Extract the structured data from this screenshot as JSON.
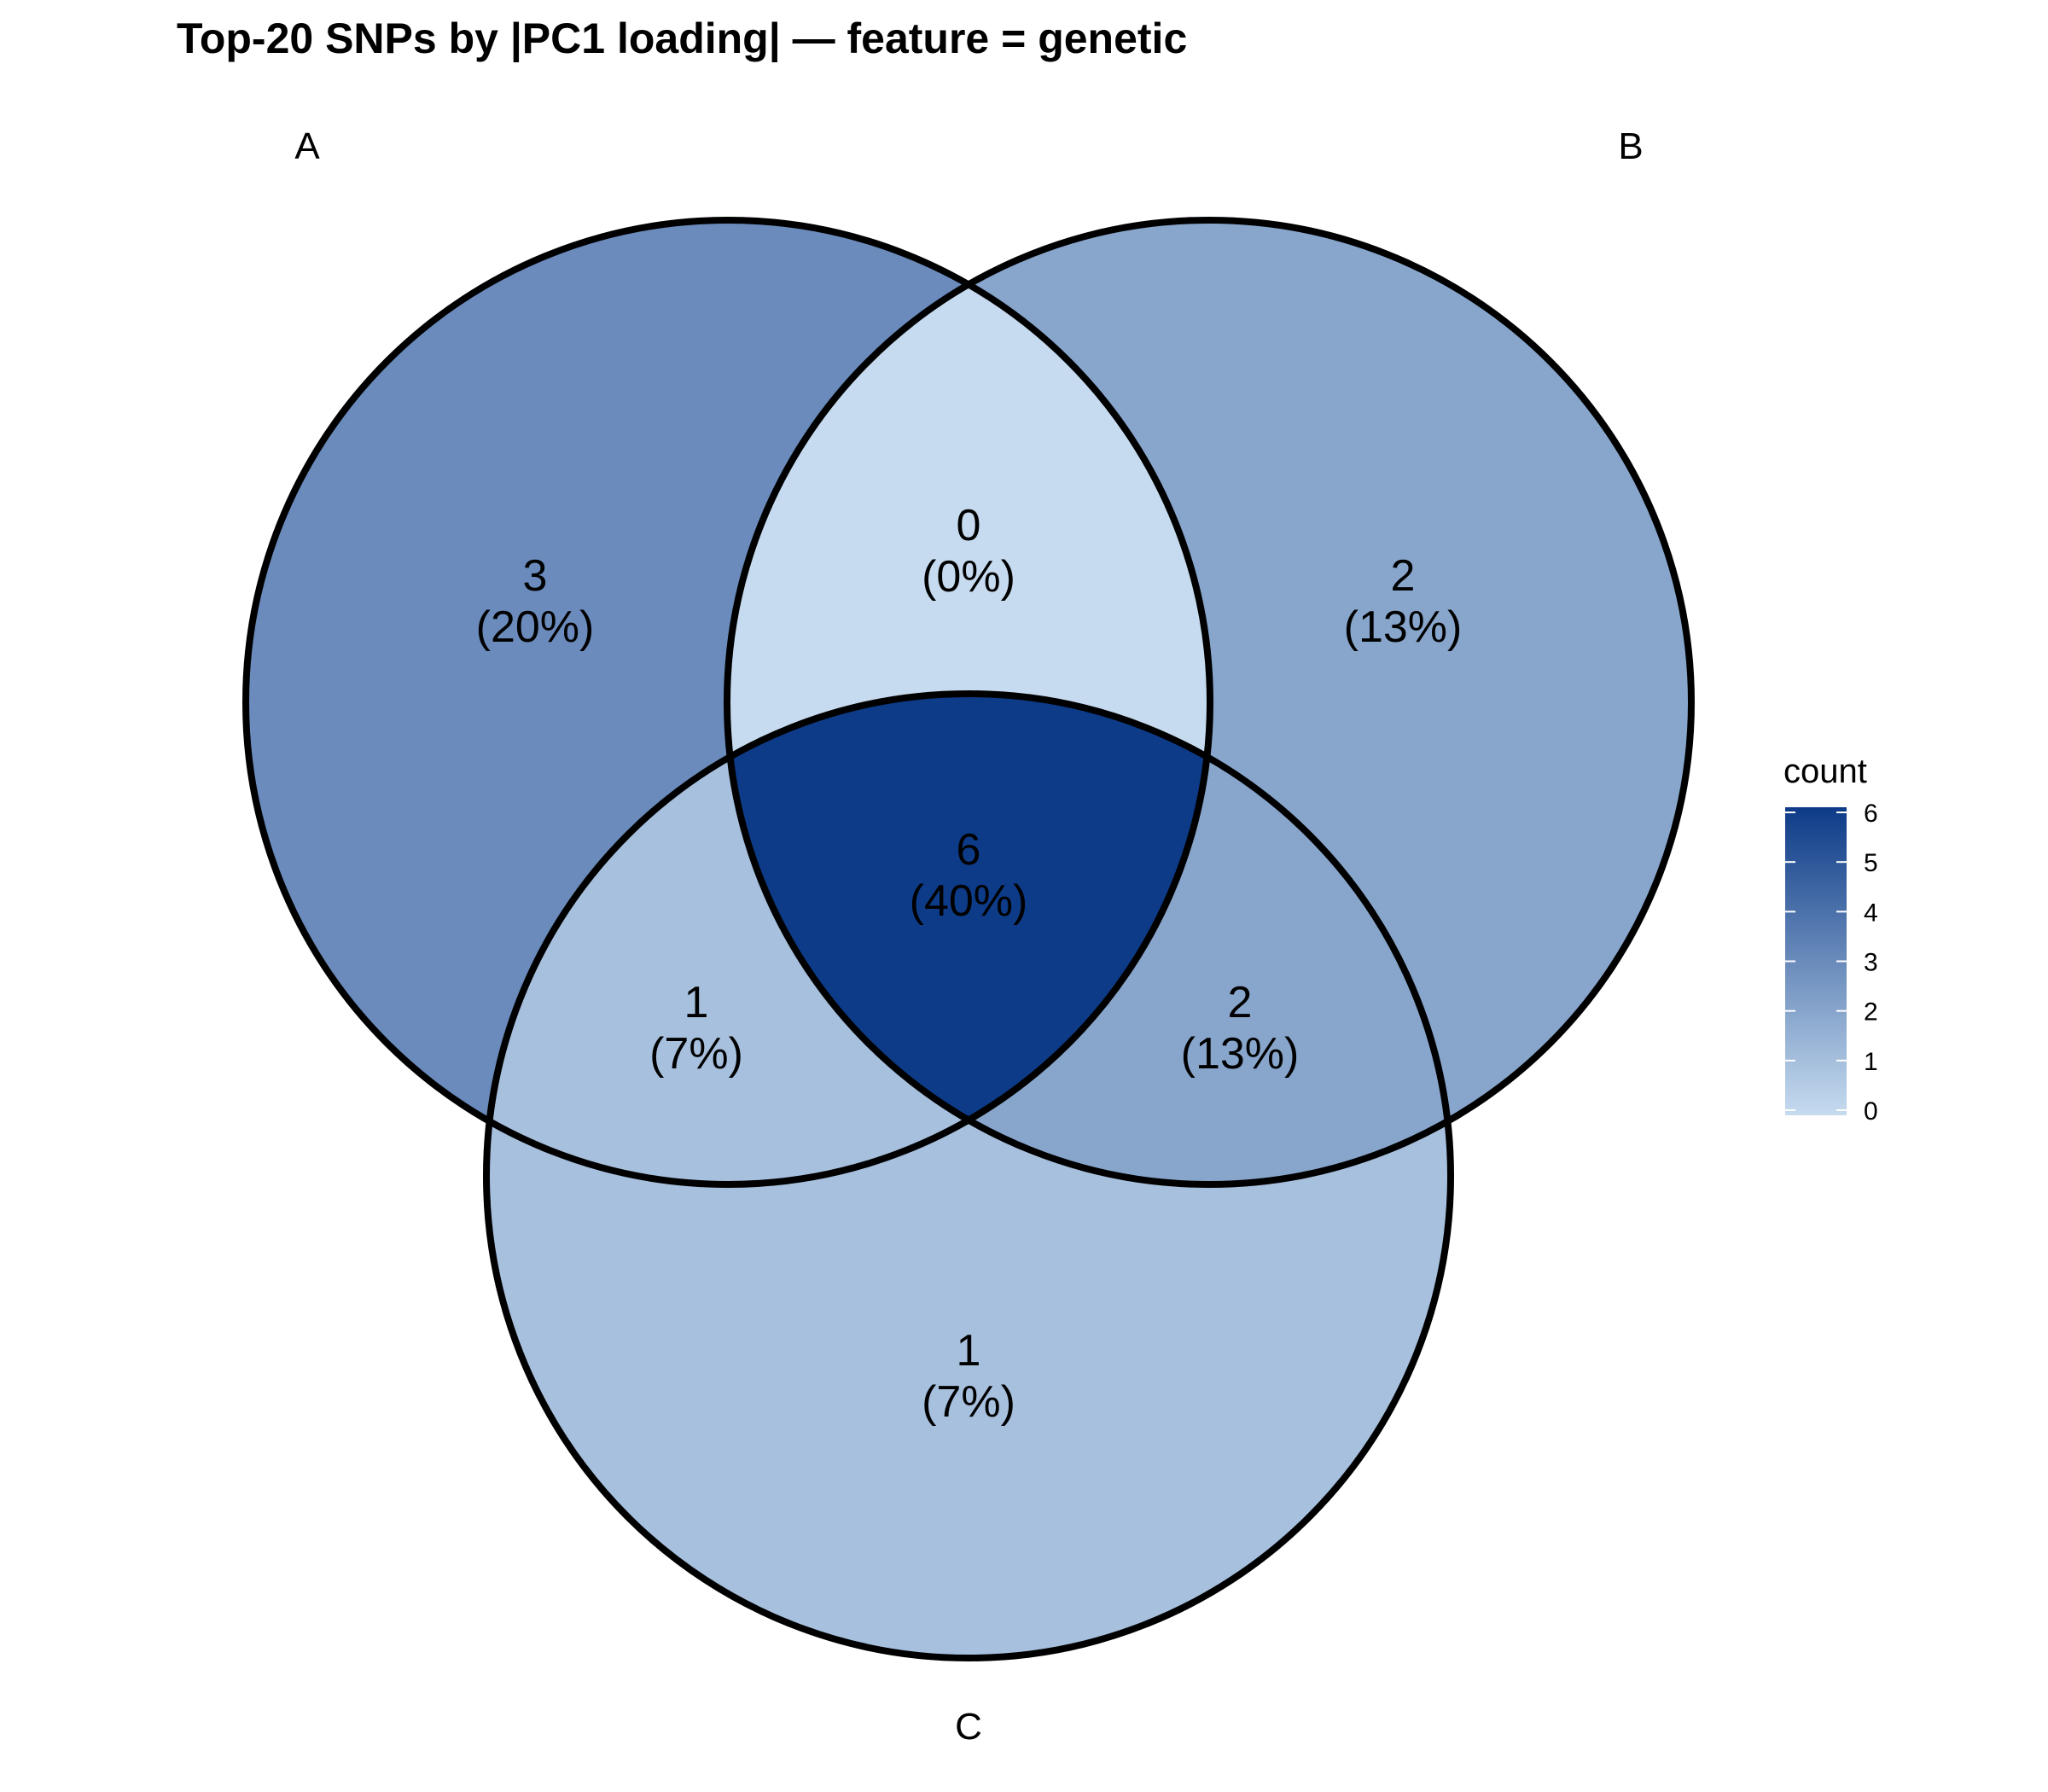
{
  "title": "Top-20 SNPs by |PC1 loading| — feature = genetic",
  "sets": [
    {
      "id": "A",
      "label": "A"
    },
    {
      "id": "B",
      "label": "B"
    },
    {
      "id": "C",
      "label": "C"
    }
  ],
  "regions": [
    {
      "id": "A_only",
      "count": "3",
      "pct": "(20%)",
      "value": 3
    },
    {
      "id": "B_only",
      "count": "2",
      "pct": "(13%)",
      "value": 2
    },
    {
      "id": "C_only",
      "count": "1",
      "pct": "(7%)",
      "value": 1
    },
    {
      "id": "AB_only",
      "count": "0",
      "pct": "(0%)",
      "value": 0
    },
    {
      "id": "AC_only",
      "count": "1",
      "pct": "(7%)",
      "value": 1
    },
    {
      "id": "BC_only",
      "count": "2",
      "pct": "(13%)",
      "value": 2
    },
    {
      "id": "ABC",
      "count": "6",
      "pct": "(40%)",
      "value": 6
    }
  ],
  "legend": {
    "title": "count",
    "ticks": [
      "0",
      "1",
      "2",
      "3",
      "4",
      "5",
      "6"
    ],
    "min": 0,
    "max": 6,
    "color_low": "#c6dbef",
    "color_high": "#0d3b87"
  }
}
